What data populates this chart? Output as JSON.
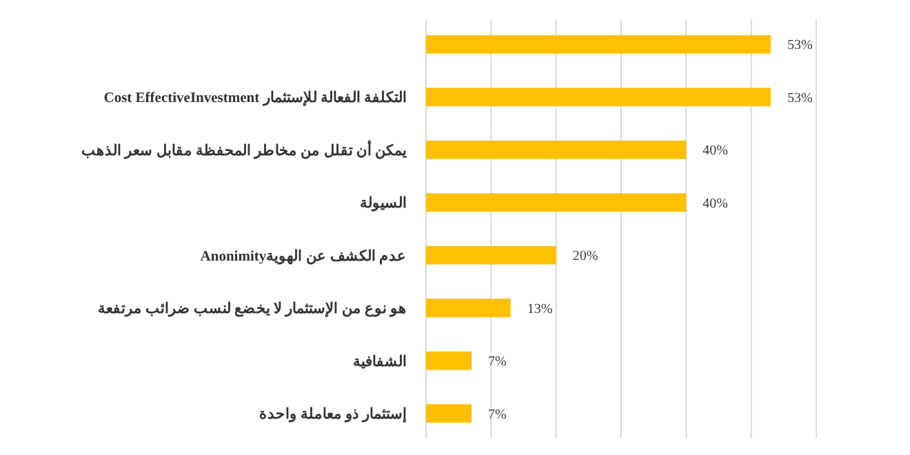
{
  "chart_data": {
    "type": "bar",
    "orientation": "horizontal",
    "categories": [
      null,
      "التكلفة الفعالة للإستثمار Cost EffectiveInvestment",
      "يمكن أن تقلل من مخاطر المحفظة مقابل سعر الذهب",
      "السيولة",
      "عدم الكشف عن الهويةAnonimity",
      "هو نوع من الإستثمار لا يخضع لنسب ضرائب مرتفعة",
      "الشفافية",
      "إستثمار ذو معاملة واحدة"
    ],
    "values": [
      53,
      53,
      40,
      40,
      20,
      13,
      7,
      7
    ],
    "value_labels": [
      "53%",
      "53%",
      "40%",
      "40%",
      "20%",
      "13%",
      "7%",
      "7%"
    ],
    "color": "#ffc000",
    "xlim": [
      0,
      60
    ],
    "xticks": [
      {
        "value": 0,
        "label": null
      },
      {
        "value": 10,
        "label": null
      },
      {
        "value": 20,
        "label": null
      },
      {
        "value": 30,
        "label": null
      },
      {
        "value": 40,
        "label": null
      },
      {
        "value": 50,
        "label": null
      },
      {
        "value": 60,
        "label": null
      }
    ],
    "grid": "x",
    "tick_labels": "y"
  }
}
